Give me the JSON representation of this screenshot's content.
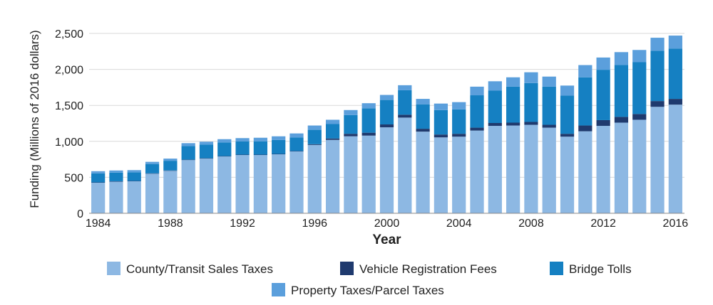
{
  "chart_data": {
    "type": "bar",
    "stacked": true,
    "xlabel": "Year",
    "ylabel": "Funding (Millions of 2016 dollars)",
    "ylim": [
      0,
      2500
    ],
    "yticks": [
      0,
      500,
      1000,
      1500,
      2000,
      2500
    ],
    "ytick_labels": [
      "0",
      "500",
      "1,000",
      "1,500",
      "2,000",
      "2,500"
    ],
    "xtick_labels": [
      "1984",
      "1988",
      "1992",
      "1996",
      "2000",
      "2004",
      "2008",
      "2012",
      "2016"
    ],
    "grid": "horizontal",
    "legend_position": "bottom",
    "categories": [
      1984,
      1985,
      1986,
      1987,
      1988,
      1989,
      1990,
      1991,
      1992,
      1993,
      1994,
      1995,
      1996,
      1997,
      1998,
      1999,
      2000,
      2001,
      2002,
      2003,
      2004,
      2005,
      2006,
      2007,
      2008,
      2009,
      2010,
      2011,
      2012,
      2013,
      2014,
      2015,
      2016
    ],
    "series": [
      {
        "name": "County/Transit Sales Taxes",
        "color": "#8DB8E3",
        "values": [
          425,
          440,
          445,
          550,
          590,
          740,
          760,
          790,
          810,
          810,
          820,
          860,
          950,
          1020,
          1070,
          1080,
          1195,
          1330,
          1135,
          1055,
          1065,
          1150,
          1215,
          1220,
          1230,
          1190,
          1065,
          1140,
          1215,
          1260,
          1300,
          1480,
          1510
        ]
      },
      {
        "name": "Vehicle Registration Fees",
        "color": "#1F3A6E",
        "values": [
          5,
          5,
          5,
          5,
          5,
          5,
          5,
          5,
          5,
          5,
          5,
          5,
          10,
          20,
          35,
          40,
          40,
          40,
          40,
          40,
          40,
          40,
          40,
          40,
          40,
          40,
          40,
          80,
          80,
          80,
          80,
          80,
          80
        ]
      },
      {
        "name": "Bridge Tolls",
        "color": "#1580C2",
        "values": [
          125,
          120,
          120,
          130,
          135,
          190,
          190,
          190,
          185,
          185,
          195,
          190,
          200,
          200,
          260,
          340,
          340,
          340,
          340,
          340,
          340,
          450,
          450,
          500,
          540,
          530,
          530,
          670,
          700,
          720,
          720,
          700,
          700
        ]
      },
      {
        "name": "Property Taxes/Parcel Taxes",
        "color": "#5B9FDC",
        "values": [
          30,
          30,
          30,
          30,
          30,
          40,
          40,
          45,
          45,
          50,
          50,
          55,
          60,
          60,
          70,
          70,
          70,
          70,
          75,
          90,
          100,
          120,
          130,
          130,
          150,
          140,
          140,
          170,
          170,
          180,
          170,
          180,
          180
        ]
      }
    ]
  }
}
